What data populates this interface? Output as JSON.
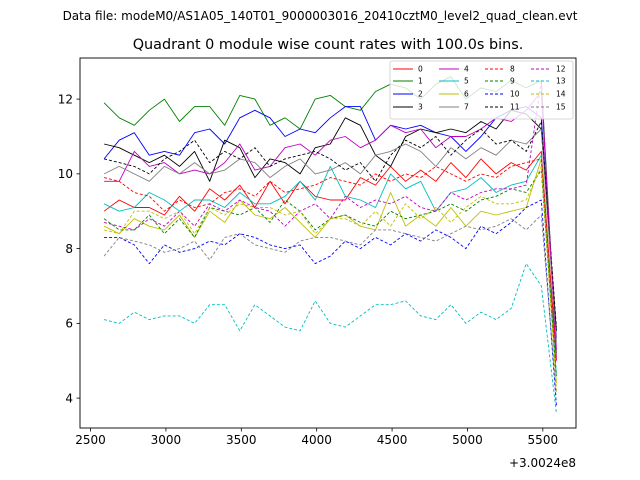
{
  "figure": {
    "suptitle": "Data file: modeM0/AS1A05_140T01_9000003016_20410cztM0_level2_quad_clean.evt"
  },
  "chart_data": {
    "type": "line",
    "title": "Quadrant 0 module wise count rates with 100.0s bins.",
    "xlabel": "",
    "ylabel": "",
    "x_offset_label": "+3.0024e8",
    "xlim": [
      2430,
      5720
    ],
    "ylim": [
      3.2,
      13.1
    ],
    "xticks": [
      2500,
      3000,
      3500,
      4000,
      4500,
      5000,
      5500
    ],
    "yticks": [
      4,
      6,
      8,
      10,
      12
    ],
    "grid": false,
    "legend": {
      "location": "top-right",
      "columns": 4
    },
    "x": [
      2590,
      2690,
      2790,
      2890,
      2990,
      3090,
      3190,
      3290,
      3390,
      3490,
      3590,
      3690,
      3790,
      3890,
      3990,
      4090,
      4190,
      4290,
      4390,
      4490,
      4590,
      4690,
      4790,
      4890,
      4990,
      5090,
      5190,
      5290,
      5390,
      5490,
      5590
    ],
    "series": [
      {
        "name": "0",
        "color": "#ff0000",
        "style": "solid",
        "values": [
          9.0,
          9.3,
          9.1,
          9.1,
          8.9,
          9.4,
          9.0,
          9.6,
          9.3,
          9.7,
          9.1,
          9.8,
          9.2,
          9.8,
          9.4,
          9.3,
          9.3,
          9.9,
          9.7,
          10.2,
          9.8,
          10.1,
          9.8,
          10.3,
          9.9,
          10.4,
          10.0,
          10.3,
          10.1,
          10.6,
          5.0
        ]
      },
      {
        "name": "1",
        "color": "#008000",
        "style": "solid",
        "values": [
          11.9,
          11.5,
          11.3,
          11.7,
          12.0,
          11.4,
          11.8,
          11.8,
          11.3,
          12.1,
          12.0,
          11.3,
          11.5,
          11.2,
          12.0,
          12.1,
          11.8,
          11.7,
          12.2,
          12.4,
          12.3,
          12.0,
          12.4,
          12.6,
          12.0,
          12.3,
          12.2,
          12.5,
          12.3,
          12.5,
          5.2
        ]
      },
      {
        "name": "2",
        "color": "#0000ff",
        "style": "solid",
        "values": [
          10.4,
          10.9,
          11.1,
          10.5,
          10.6,
          10.5,
          11.1,
          11.2,
          10.8,
          11.5,
          11.7,
          11.5,
          11.0,
          11.2,
          11.1,
          11.5,
          11.8,
          11.8,
          10.9,
          11.3,
          11.2,
          11.3,
          11.1,
          11.0,
          10.6,
          11.0,
          11.5,
          11.7,
          11.8,
          11.5,
          5.6
        ]
      },
      {
        "name": "3",
        "color": "#000000",
        "style": "solid",
        "values": [
          10.8,
          10.7,
          10.5,
          10.3,
          10.5,
          10.2,
          10.6,
          9.8,
          10.9,
          10.7,
          9.9,
          10.4,
          10.3,
          10.0,
          10.7,
          10.8,
          11.5,
          11.3,
          10.5,
          10.2,
          11.0,
          11.2,
          11.1,
          11.2,
          11.1,
          11.4,
          11.2,
          11.7,
          11.6,
          11.2,
          5.8
        ]
      },
      {
        "name": "4",
        "color": "#c000c0",
        "style": "solid",
        "values": [
          9.8,
          9.8,
          10.6,
          10.2,
          10.3,
          10.0,
          10.1,
          10.0,
          10.3,
          10.8,
          10.1,
          10.2,
          10.7,
          10.8,
          10.5,
          10.9,
          11.0,
          10.7,
          10.9,
          11.3,
          11.1,
          11.2,
          10.7,
          11.0,
          11.0,
          11.2,
          11.5,
          11.4,
          11.7,
          12.2,
          5.3
        ]
      },
      {
        "name": "5",
        "color": "#00bfbf",
        "style": "solid",
        "values": [
          9.2,
          9.0,
          9.1,
          9.5,
          9.3,
          9.0,
          9.3,
          9.3,
          9.1,
          9.5,
          9.2,
          9.2,
          9.4,
          9.8,
          9.3,
          10.2,
          9.4,
          9.3,
          9.1,
          10.0,
          9.6,
          9.8,
          9.0,
          9.5,
          9.6,
          9.9,
          9.5,
          9.7,
          9.8,
          10.5,
          4.6
        ]
      },
      {
        "name": "6",
        "color": "#bfbf00",
        "style": "solid",
        "values": [
          8.6,
          8.4,
          8.8,
          8.6,
          8.5,
          8.9,
          8.3,
          9.0,
          8.7,
          9.3,
          8.9,
          8.8,
          9.1,
          8.7,
          8.3,
          8.8,
          8.9,
          8.6,
          8.5,
          9.5,
          8.6,
          8.9,
          8.6,
          9.1,
          8.6,
          9.0,
          8.9,
          9.0,
          9.1,
          10.4,
          4.4
        ]
      },
      {
        "name": "7",
        "color": "#808080",
        "style": "solid",
        "values": [
          10.0,
          10.2,
          10.0,
          9.8,
          10.2,
          10.0,
          10.3,
          10.0,
          10.1,
          10.4,
          10.3,
          9.9,
          10.2,
          10.4,
          10.0,
          10.1,
          10.3,
          10.0,
          10.5,
          10.6,
          10.8,
          10.6,
          10.2,
          10.7,
          10.4,
          10.7,
          10.5,
          10.9,
          10.8,
          11.2,
          5.5
        ]
      },
      {
        "name": "8",
        "color": "#ff0000",
        "style": "dashed",
        "values": [
          9.9,
          9.8,
          9.5,
          9.4,
          9.0,
          9.3,
          9.1,
          9.2,
          9.5,
          9.6,
          9.4,
          9.8,
          9.5,
          9.6,
          9.7,
          9.9,
          9.8,
          9.7,
          10.0,
          9.8,
          10.0,
          9.9,
          10.2,
          10.0,
          9.8,
          10.0,
          9.9,
          10.2,
          10.3,
          10.4,
          5.1
        ]
      },
      {
        "name": "9",
        "color": "#008000",
        "style": "dashed",
        "values": [
          8.8,
          8.5,
          8.5,
          8.9,
          8.4,
          8.8,
          8.3,
          9.1,
          9.0,
          8.9,
          9.1,
          8.7,
          9.3,
          9.0,
          8.5,
          8.8,
          8.9,
          8.7,
          8.6,
          9.0,
          8.8,
          8.9,
          9.0,
          9.2,
          9.0,
          9.3,
          9.4,
          9.6,
          9.5,
          10.1,
          4.6
        ]
      },
      {
        "name": "10",
        "color": "#0000ff",
        "style": "dashed",
        "values": [
          8.3,
          8.3,
          8.1,
          7.6,
          8.1,
          7.9,
          8.0,
          8.2,
          8.1,
          8.4,
          8.3,
          8.1,
          8.0,
          8.1,
          7.6,
          7.8,
          8.2,
          8.0,
          8.3,
          8.1,
          8.4,
          8.2,
          8.5,
          8.3,
          8.0,
          8.6,
          8.4,
          8.7,
          9.1,
          9.3,
          3.8
        ]
      },
      {
        "name": "11",
        "color": "#000000",
        "style": "dashed",
        "values": [
          10.4,
          10.3,
          10.2,
          10.0,
          10.4,
          10.6,
          10.9,
          10.3,
          10.6,
          10.4,
          10.7,
          10.2,
          10.4,
          10.5,
          10.6,
          10.4,
          10.1,
          10.3,
          9.8,
          10.5,
          10.9,
          10.7,
          11.0,
          10.5,
          10.9,
          11.2,
          10.8,
          10.9,
          10.6,
          11.4,
          5.9
        ]
      },
      {
        "name": "12",
        "color": "#c000c0",
        "style": "dashed",
        "values": [
          8.7,
          8.6,
          8.5,
          8.8,
          8.6,
          9.0,
          8.6,
          9.2,
          9.0,
          9.3,
          9.1,
          9.0,
          8.6,
          9.0,
          9.2,
          8.8,
          9.4,
          9.1,
          9.3,
          9.2,
          9.4,
          9.1,
          9.0,
          9.5,
          9.3,
          9.5,
          9.6,
          9.6,
          9.7,
          12.5,
          5.0
        ]
      },
      {
        "name": "13",
        "color": "#00bfbf",
        "style": "dashed",
        "values": [
          6.1,
          6.0,
          6.3,
          6.1,
          6.2,
          6.2,
          6.0,
          6.5,
          6.5,
          5.8,
          6.5,
          6.2,
          5.9,
          5.8,
          6.6,
          6.0,
          5.9,
          6.2,
          6.5,
          6.5,
          6.6,
          6.2,
          6.1,
          6.5,
          6.0,
          6.3,
          6.1,
          6.4,
          7.6,
          7.0,
          3.6
        ]
      },
      {
        "name": "14",
        "color": "#bfbf00",
        "style": "dashed",
        "values": [
          8.5,
          8.4,
          9.0,
          9.0,
          8.8,
          9.0,
          8.4,
          9.1,
          8.9,
          9.2,
          9.1,
          9.1,
          8.9,
          9.0,
          8.4,
          8.8,
          8.8,
          8.6,
          9.0,
          8.6,
          9.2,
          8.8,
          9.1,
          8.7,
          9.1,
          9.4,
          9.2,
          9.2,
          9.3,
          10.2,
          4.2
        ]
      },
      {
        "name": "15",
        "color": "#808080",
        "style": "dashed",
        "values": [
          7.8,
          8.3,
          8.2,
          8.1,
          7.9,
          8.0,
          8.2,
          7.7,
          8.3,
          8.4,
          8.1,
          8.0,
          7.9,
          8.2,
          8.3,
          8.3,
          8.2,
          8.1,
          8.5,
          8.5,
          8.4,
          8.3,
          8.2,
          8.4,
          8.6,
          8.5,
          8.6,
          8.8,
          8.5,
          8.9,
          4.1
        ]
      }
    ]
  }
}
